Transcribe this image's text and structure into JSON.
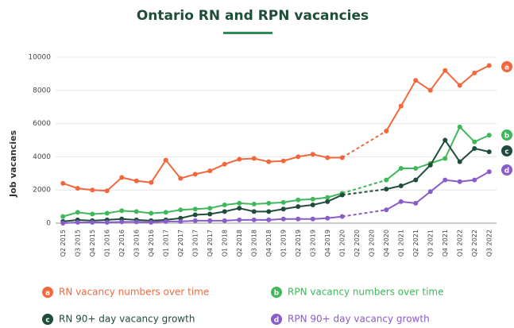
{
  "chart_data": {
    "type": "line",
    "title": "Ontario RN and RPN vacancies",
    "ylabel": "Job vacancies",
    "categories": [
      "Q2 2015",
      "Q3 2015",
      "Q4 2015",
      "Q1 2016",
      "Q2 2016",
      "Q3 2016",
      "Q4 2016",
      "Q1 2017",
      "Q2 2017",
      "Q3 2017",
      "Q4 2017",
      "Q1 2018",
      "Q2 2018",
      "Q3 2018",
      "Q4 2018",
      "Q1 2019",
      "Q2 2019",
      "Q3 2019",
      "Q4 2019",
      "Q1 2020",
      "Q2 2020",
      "Q3 2020",
      "Q4 2020",
      "Q1 2021",
      "Q2 2021",
      "Q3 2021",
      "Q4 2021",
      "Q1 2022",
      "Q2 2022",
      "Q3 2022"
    ],
    "series": [
      {
        "name": "RN vacancy numbers over time",
        "marker": "a",
        "color": "#f2683c",
        "values": [
          2400,
          2100,
          2000,
          1950,
          2750,
          2550,
          2450,
          3800,
          2700,
          2950,
          3150,
          3550,
          3850,
          3900,
          3700,
          3750,
          4000,
          4150,
          3950,
          3950,
          null,
          null,
          5550,
          7050,
          8600,
          8000,
          9200,
          8300,
          9050,
          9500
        ]
      },
      {
        "name": "RPN vacancy numbers over time",
        "marker": "b",
        "color": "#3fb85a",
        "values": [
          400,
          650,
          550,
          600,
          750,
          700,
          600,
          650,
          800,
          850,
          900,
          1100,
          1200,
          1150,
          1200,
          1250,
          1400,
          1450,
          1550,
          1800,
          null,
          null,
          2600,
          3300,
          3300,
          3600,
          3900,
          5800,
          4900,
          5300
        ]
      },
      {
        "name": "RN 90+ day vacancy growth",
        "marker": "c",
        "color": "#1f4d3a",
        "values": [
          100,
          200,
          150,
          200,
          250,
          200,
          150,
          200,
          300,
          500,
          550,
          700,
          900,
          700,
          700,
          850,
          1000,
          1100,
          1300,
          1700,
          null,
          null,
          2050,
          2250,
          2600,
          3500,
          5000,
          3700,
          4500,
          4300
        ]
      },
      {
        "name": "RPN 90+ day vacancy growth",
        "marker": "d",
        "color": "#8a5cc9",
        "values": [
          0,
          50,
          50,
          50,
          80,
          80,
          50,
          100,
          100,
          150,
          150,
          150,
          200,
          200,
          200,
          250,
          250,
          250,
          300,
          400,
          null,
          null,
          800,
          1300,
          1200,
          1900,
          2600,
          2500,
          2600,
          3100
        ]
      }
    ],
    "ylim": [
      0,
      10000
    ],
    "yticks": [
      0,
      2000,
      4000,
      6000,
      8000,
      10000
    ],
    "grid": true
  }
}
